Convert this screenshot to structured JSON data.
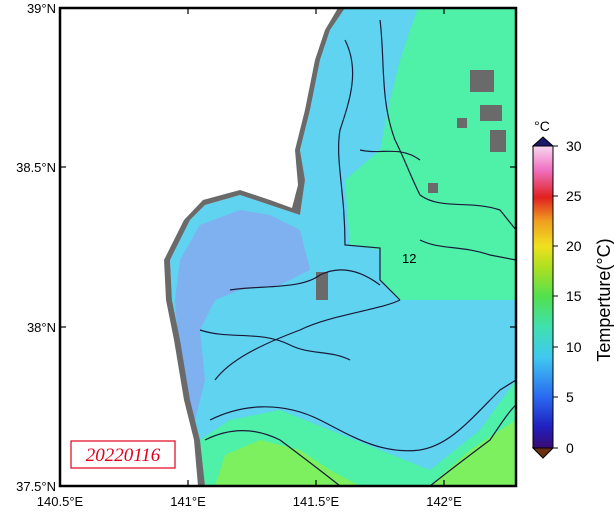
{
  "map": {
    "lat_labels": [
      "39°N",
      "38.5°N",
      "38°N",
      "37.5°N"
    ],
    "lon_labels": [
      "140.5°E",
      "141°E",
      "141.5°E",
      "142°E"
    ],
    "date": "20220116",
    "contour_label": "12"
  },
  "colorbar": {
    "unit": "°C",
    "title": "Temperture(°C)",
    "ticks": [
      "30",
      "25",
      "20",
      "15",
      "10",
      "5",
      "0"
    ]
  },
  "colors": {
    "land": "#6a6a6a",
    "water_cool": "#5fd3ef",
    "water_cold": "#7fb0f0",
    "water_warm": "#4ff0a8",
    "water_hot": "#7df060",
    "date_red": "#e0001a"
  }
}
